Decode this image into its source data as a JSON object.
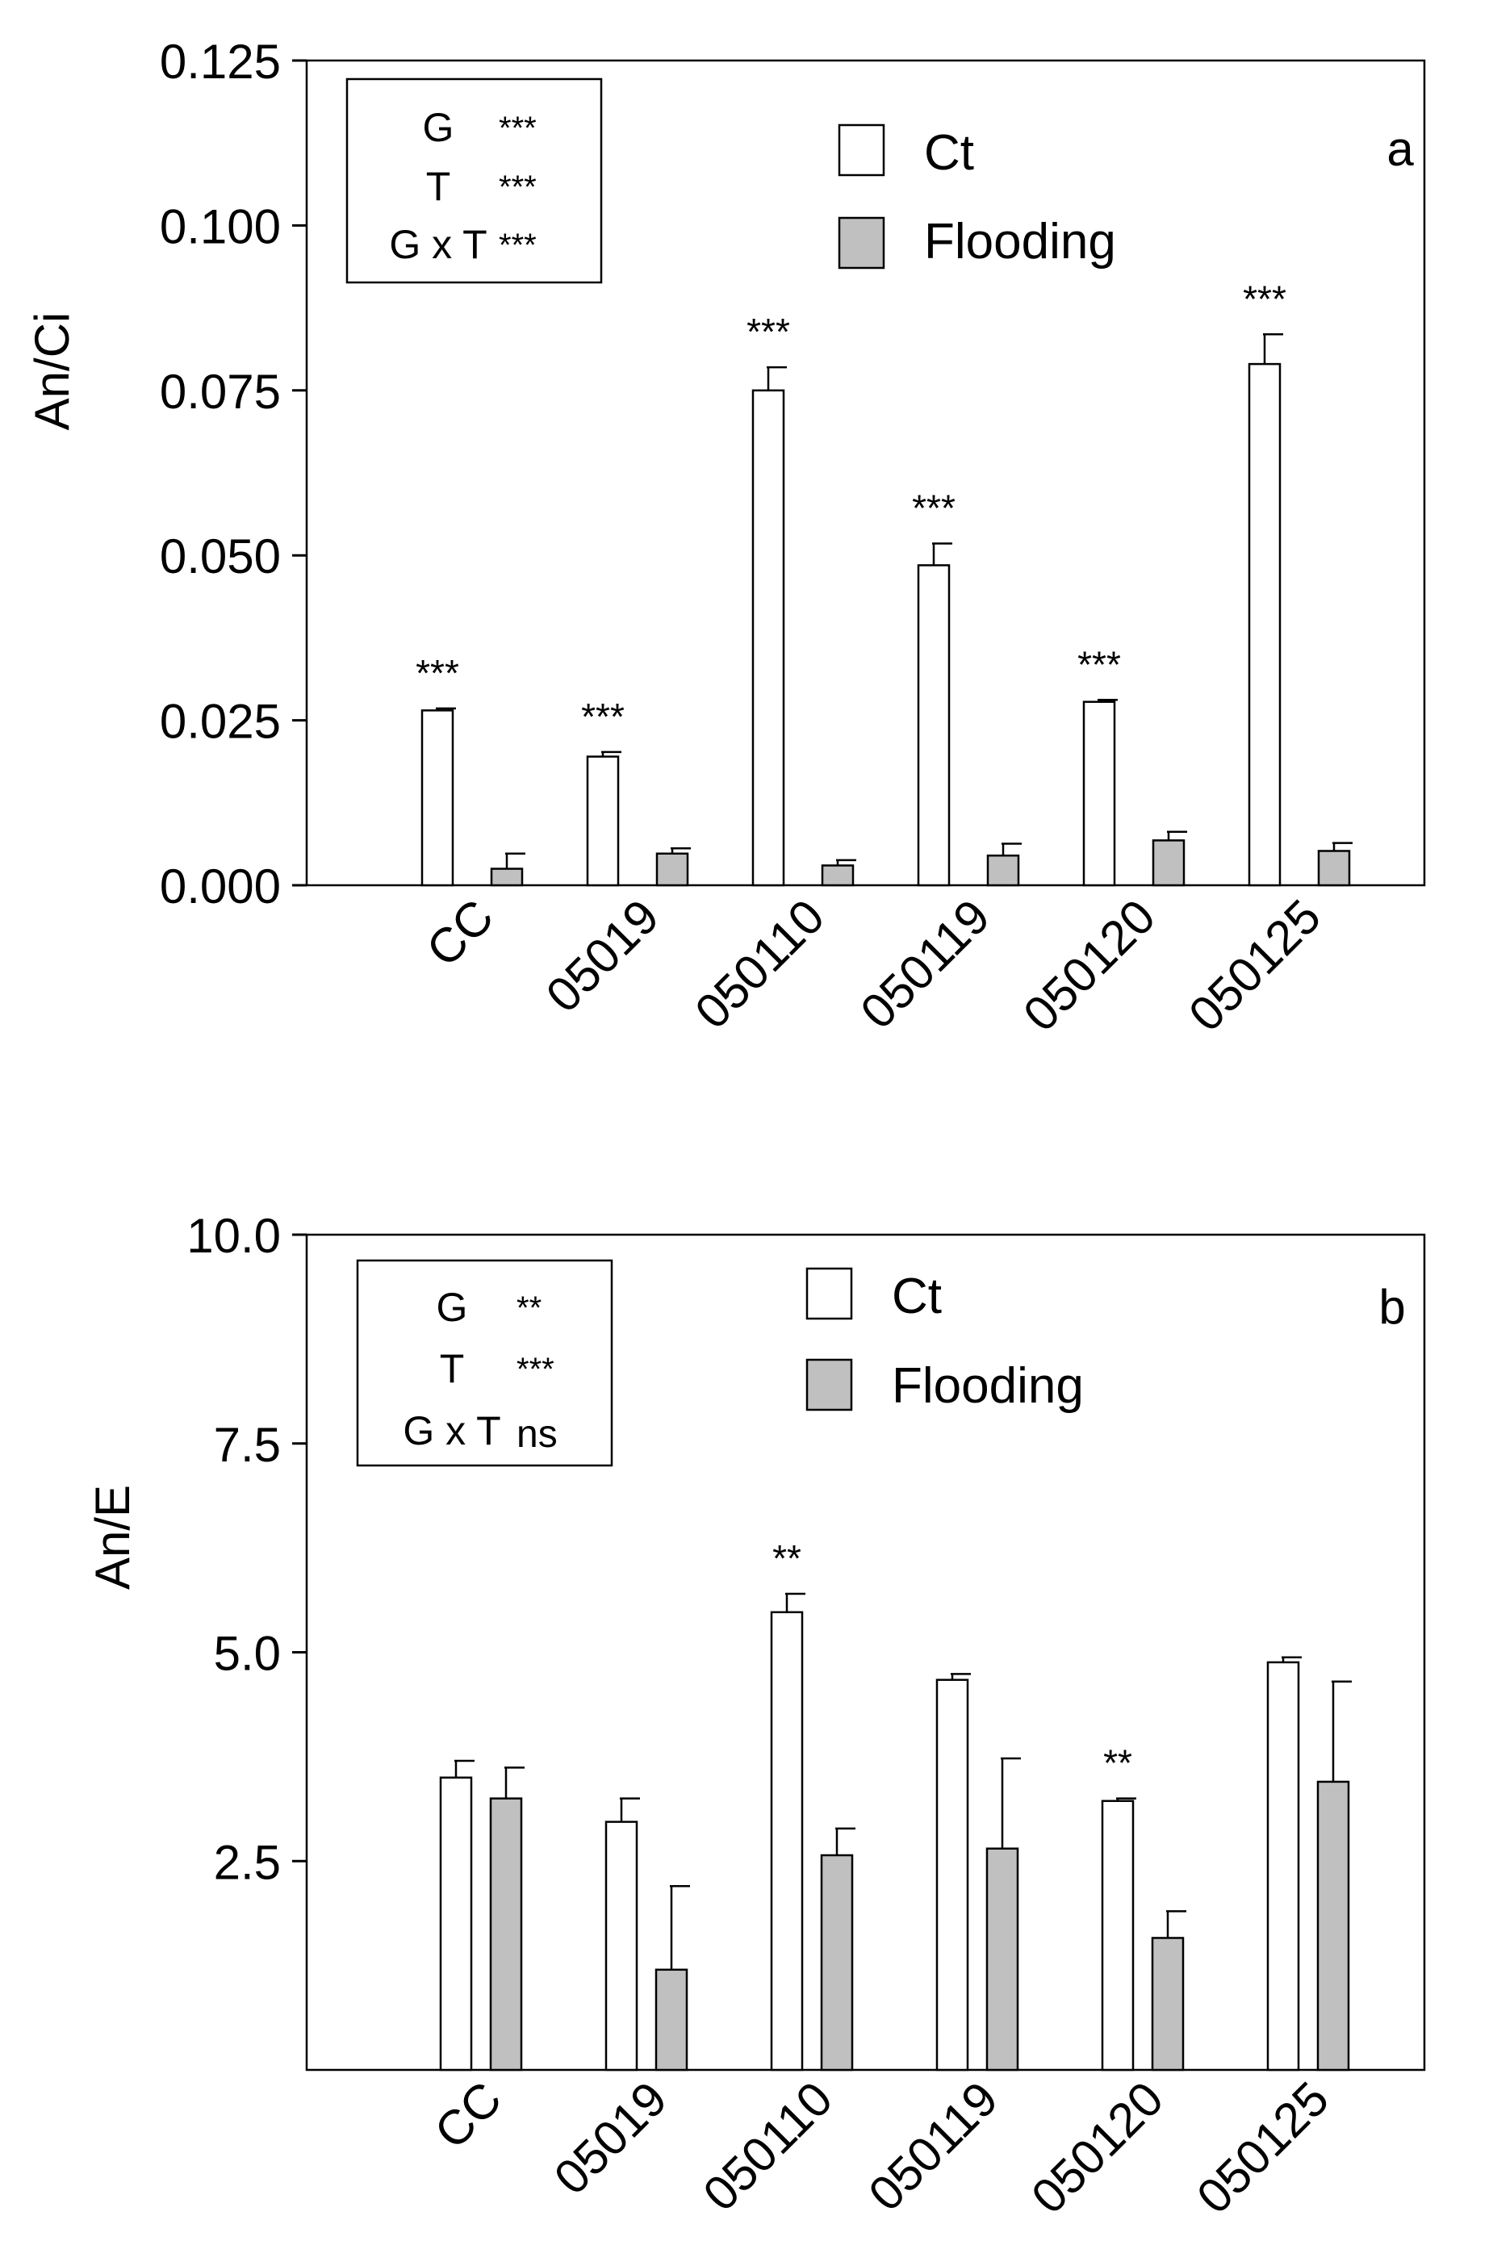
{
  "colors": {
    "ct": "#ffffff",
    "flooding": "#c0c0c0",
    "ink": "#000000"
  },
  "chart_data": [
    {
      "type": "bar",
      "panel_label": "a",
      "ylabel": "An/Ci",
      "xlabel": "",
      "ylim": [
        0,
        0.125
      ],
      "yticks": [
        "0.000",
        "0.025",
        "0.050",
        "0.075",
        "0.100",
        "0.125"
      ],
      "ytick_values": [
        0,
        0.025,
        0.05,
        0.075,
        0.1,
        0.125
      ],
      "categories": [
        "CC",
        "05019",
        "050110",
        "050119",
        "050120",
        "050125"
      ],
      "series": [
        {
          "name": "Ct",
          "values": [
            0.0265,
            0.0195,
            0.075,
            0.0485,
            0.0278,
            0.079
          ],
          "errors": [
            0.0003,
            0.0007,
            0.0035,
            0.0033,
            0.0003,
            0.0045
          ]
        },
        {
          "name": "Flooding",
          "values": [
            0.0025,
            0.0048,
            0.003,
            0.0045,
            0.0068,
            0.0052
          ],
          "errors": [
            0.0023,
            0.0008,
            0.0008,
            0.0018,
            0.0013,
            0.0012
          ]
        }
      ],
      "significance": [
        "***",
        "***",
        "***",
        "***",
        "***",
        "***"
      ],
      "stats_box": [
        {
          "factor": "G",
          "level": "***"
        },
        {
          "factor": "T",
          "level": "***"
        },
        {
          "factor": "G x T",
          "level": "***"
        }
      ],
      "legend": [
        "Ct",
        "Flooding"
      ],
      "legend_position": "top-center",
      "grid": false
    },
    {
      "type": "bar",
      "panel_label": "b",
      "ylabel": "An/E",
      "xlabel": "",
      "ylim": [
        0,
        10
      ],
      "yticks": [
        "2.5",
        "5.0",
        "7.5",
        "10.0"
      ],
      "ytick_values": [
        2.5,
        5,
        7.5,
        10
      ],
      "categories": [
        "CC",
        "05019",
        "050110",
        "050119",
        "050120",
        "050125"
      ],
      "series": [
        {
          "name": "Ct",
          "values": [
            3.5,
            2.97,
            5.48,
            4.67,
            3.22,
            4.88
          ],
          "errors": [
            0.2,
            0.28,
            0.22,
            0.07,
            0.03,
            0.06
          ]
        },
        {
          "name": "Flooding",
          "values": [
            3.25,
            1.2,
            2.57,
            2.65,
            1.58,
            3.45
          ],
          "errors": [
            0.37,
            1.0,
            0.32,
            1.08,
            0.32,
            1.2
          ]
        }
      ],
      "significance": [
        "",
        "",
        "**",
        "",
        "**",
        ""
      ],
      "stats_box": [
        {
          "factor": "G",
          "level": "**"
        },
        {
          "factor": "T",
          "level": "***"
        },
        {
          "factor": "G x T",
          "level": "ns"
        }
      ],
      "legend": [
        "Ct",
        "Flooding"
      ],
      "legend_position": "top-center",
      "grid": false
    }
  ]
}
